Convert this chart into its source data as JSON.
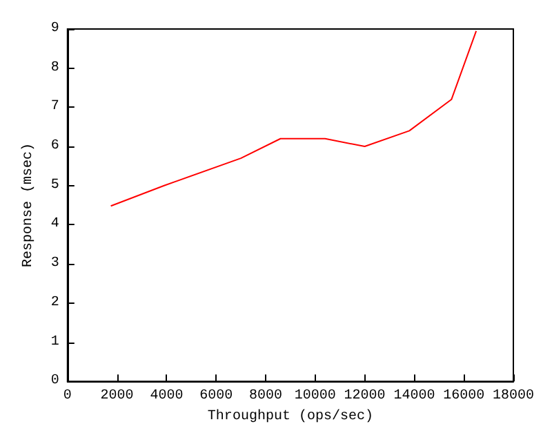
{
  "chart_data": {
    "type": "line",
    "xlabel": "Throughput (ops/sec)",
    "ylabel": "Response (msec)",
    "x": [
      1750,
      3900,
      7000,
      8600,
      10400,
      12000,
      13800,
      15500,
      16500
    ],
    "series": [
      {
        "color": "#ff0000",
        "values": [
          4.48,
          5.0,
          5.7,
          6.2,
          6.2,
          6.0,
          6.4,
          7.2,
          8.95
        ]
      }
    ],
    "xlim": [
      0,
      18000
    ],
    "xticks": [
      0,
      2000,
      4000,
      6000,
      8000,
      10000,
      12000,
      14000,
      16000,
      18000
    ],
    "ylim": [
      0,
      9
    ],
    "yticks": [
      0,
      1,
      2,
      3,
      4,
      5,
      6,
      7,
      8,
      9
    ],
    "grid": false,
    "marker": "none",
    "line_style": "solid"
  }
}
